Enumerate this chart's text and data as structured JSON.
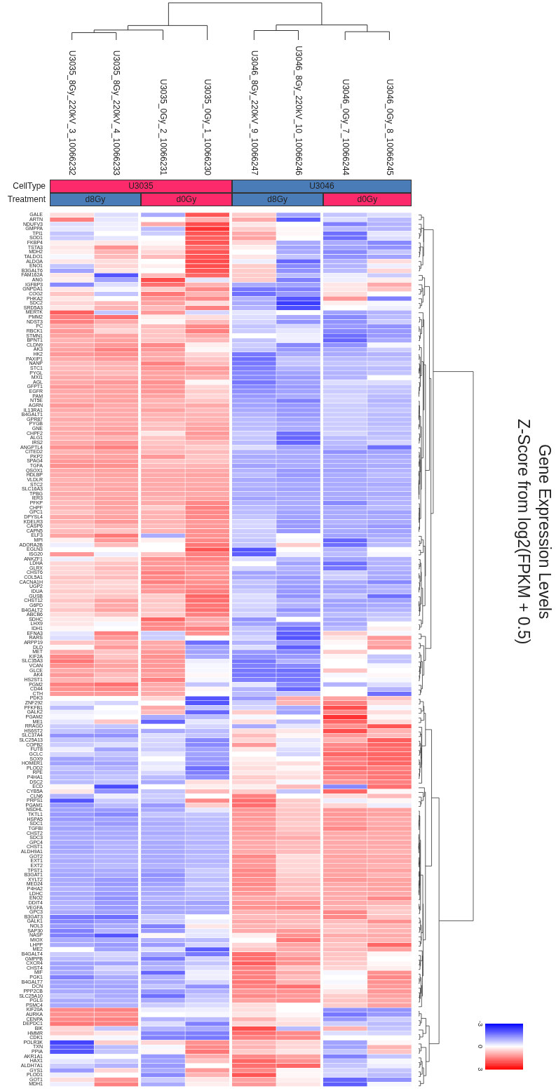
{
  "chart_data": {
    "type": "heatmap",
    "title": "Gene Expression Levels",
    "subtitle": "Z-Score from log2(FPKM + 0.5)",
    "categories": [
      "U3035_8Gy_220kV_3_10066232",
      "U3035_8Gy_220kV_4_10066233",
      "U3035_0Gy_2_10066231",
      "U3035_0Gy_1_10066230",
      "U3046_8Gy_220kV_9_10066247",
      "U3046_8Gy_220kV_10_10066246",
      "U3046_0Gy_7_10066244",
      "U3046_0Gy_8_10066245"
    ],
    "y_categories": [
      "GALE",
      "ARTN",
      "NDUFV3",
      "GMPPA",
      "TPI1",
      "SOD1",
      "FKBP4",
      "TSTA3",
      "MDH2",
      "TALDO1",
      "ALDOA",
      "ENO1",
      "B3GALT6",
      "FAM162A",
      "ANG",
      "IGFBP3",
      "GNPDA1",
      "COG2",
      "PHKA2",
      "SDC2",
      "SRD5A3",
      "MERTK",
      "PMM2",
      "NDST3",
      "PC",
      "RBCK1",
      "STMN1",
      "BPNT1",
      "CLDN9",
      "AK3",
      "HK2",
      "PAXIP1",
      "NANP",
      "STC1",
      "PYGL",
      "MXI1",
      "AGL",
      "GFPT1",
      "EGFR",
      "PAM",
      "NT5E",
      "AGRN",
      "IL13RA1",
      "B4GALT1",
      "GPR87",
      "PYGB",
      "GNE",
      "CHPF2",
      "ALG1",
      "IRS2",
      "ANGPTL4",
      "CITED2",
      "PKP2",
      "SPAG4",
      "TGFA",
      "QSOX1",
      "HDLBP",
      "VLDLR",
      "STC2",
      "SLC16A3",
      "TPBG",
      "IER3",
      "PFKP",
      "CHPF",
      "GPC1",
      "DPYSL4",
      "KDELR3",
      "CASP6",
      "CAPN5",
      "ELF3",
      "MPI",
      "ADORA2B",
      "EGLN3",
      "ISG20",
      "ANKZF1",
      "LDHA",
      "GLRX",
      "CHST6",
      "COL5A1",
      "CACNA1H",
      "UGP2",
      "IDUA",
      "GUSB",
      "CHST12",
      "G6PD",
      "B4GALT2",
      "ABCB6",
      "SDHC",
      "LHX9",
      "IDH1",
      "EFNA3",
      "RARS",
      "ARPP19",
      "DLD",
      "MET",
      "KIF2A",
      "SLC35A3",
      "VCAN",
      "GLCE",
      "AK4",
      "HS2ST1",
      "PGM2",
      "CD44",
      "CTH",
      "PDK3",
      "ZNF292",
      "PFKFB1",
      "GALK2",
      "PGAM2",
      "ME1",
      "RRAGD",
      "HS6ST2",
      "SLC37A4",
      "SLC25A13",
      "COPB2",
      "FUT8",
      "GCLC",
      "SOX9",
      "HOMER1",
      "PLOD2",
      "RPE",
      "P4HA1",
      "DSC2",
      "ECD",
      "CYB5A",
      "CLN6",
      "PRPS1",
      "PGAM1",
      "NSDHL",
      "TKTL1",
      "HSPA5",
      "SDC1",
      "TGFBI",
      "CHST2",
      "SDC3",
      "GPC4",
      "CHST1",
      "ALDH9A1",
      "GOT2",
      "EXT1",
      "EXT2",
      "TPST1",
      "B3GAT1",
      "XYLT2",
      "MED24",
      "P4HA2",
      "LDHC",
      "ENO2",
      "DDIT4",
      "VEGFA",
      "GPC3",
      "B3GAT3",
      "GALK1",
      "NOL3",
      "SAP30",
      "NASP",
      "MIOX",
      "LHPP",
      "ME2",
      "B4GALT4",
      "GMPPB",
      "CXCR4",
      "CHST4",
      "MIF",
      "PGK1",
      "B4GALT7",
      "DCN",
      "PPP2CB",
      "SLC25A10",
      "PGLS",
      "PSMC4",
      "KIF20A",
      "AURKA",
      "CENPA",
      "DEPDC1",
      "BIK",
      "HMMR",
      "CDK1",
      "POLR3K",
      "TXN",
      "PPIA",
      "AKR1A1",
      "HAX1",
      "ALDH7A1",
      "GYS1",
      "PLOD1",
      "GOT1",
      "MDH1"
    ],
    "cells": [
      [
        0.4,
        -0.4,
        -1.0,
        2.0,
        0.6,
        -1.1,
        -0.7,
        -0.4
      ],
      [
        1.5,
        -0.3,
        0,
        0.9,
        1.0,
        -1.9,
        -0.4,
        -0.8
      ],
      [
        -0.4,
        -0.2,
        1.0,
        2.1,
        0.3,
        0,
        -1.5,
        -0.9
      ],
      [
        -0.3,
        -0.2,
        -0.8,
        2.4,
        0.6,
        0.1,
        -0.8,
        -0.9
      ],
      [
        -0.7,
        0,
        -0.6,
        2.0,
        1.0,
        0.1,
        -1.7,
        -0.3
      ],
      [
        -0.6,
        -0.3,
        0,
        1.9,
        1.1,
        0,
        -1.7,
        -0.4
      ],
      [
        0.2,
        0.3,
        0.1,
        2.0,
        0.5,
        -1.0,
        -1.0,
        -1.4
      ],
      [
        0.3,
        1.3,
        0.3,
        1.7,
        0.2,
        -1.1,
        -1.1,
        -1.3
      ],
      [
        0.2,
        0.9,
        0.5,
        2.0,
        0,
        -1.0,
        -1.4,
        -0.7
      ],
      [
        -0.1,
        0.8,
        0.8,
        2.0,
        0.3,
        -0.7,
        -1.3,
        -1.1
      ],
      [
        0.3,
        0.4,
        0,
        2.1,
        -0.2,
        -1.8,
        -0.9,
        0.4
      ],
      [
        -0.7,
        0.5,
        0.2,
        2.1,
        0.6,
        -1.4,
        -0.9,
        -0.2
      ],
      [
        -1.1,
        0.3,
        0,
        2.0,
        0.6,
        -1.3,
        -0.8,
        0.5
      ],
      [
        0.3,
        -2.0,
        0.8,
        1.8,
        0.6,
        -0.8,
        -0.2,
        -0.6
      ],
      [
        0.2,
        -1.1,
        2.1,
        -0.3,
        0.6,
        -1.5,
        -0.2,
        0.2
      ],
      [
        -1.4,
        -0.4,
        1.7,
        0.9,
        -1.0,
        -1.1,
        0.3,
        1.0
      ],
      [
        0.3,
        -0.1,
        0.6,
        1.4,
        -1.6,
        -1.5,
        0.3,
        0.7
      ],
      [
        0.7,
        -0.7,
        1.6,
        0.9,
        -1.7,
        -1.2,
        0.4,
        0
      ],
      [
        0.3,
        0,
        1.2,
        1.4,
        -0.9,
        -2.0,
        1.2,
        -1.5
      ],
      [
        0.5,
        0.8,
        1.1,
        0.4,
        -1.0,
        -2.3,
        0.2,
        -0.1
      ],
      [
        0.3,
        0.9,
        0.8,
        1.5,
        -0.9,
        -2.1,
        0,
        -0.2
      ],
      [
        1.9,
        -0.7,
        1.2,
        -0.5,
        -0.3,
        0,
        -1.1,
        -0.9
      ],
      [
        1.5,
        1.7,
        0.2,
        0.4,
        -0.4,
        -1.0,
        -1.4,
        -0.8
      ],
      [
        1.5,
        1.0,
        0.1,
        0.8,
        -0.5,
        -1.3,
        -1.3,
        -0.6
      ],
      [
        1.0,
        0.7,
        0.8,
        1.4,
        -0.7,
        -0.5,
        -1.2,
        -1.3
      ],
      [
        1.2,
        0.5,
        0.7,
        1.5,
        -0.6,
        -0.3,
        -1.4,
        -1.2
      ],
      [
        1.1,
        1.1,
        0.7,
        1.0,
        0,
        -0.2,
        -1.7,
        -1.2
      ],
      [
        0.9,
        1.1,
        0.7,
        0.8,
        -0.7,
        -0.2,
        -1.8,
        -1.0
      ],
      [
        1.0,
        1.2,
        1.4,
        0.2,
        -0.6,
        -1.4,
        -1.3,
        -0.1
      ],
      [
        1.1,
        1.5,
        1.2,
        0.1,
        -0.7,
        -1.2,
        -1.0,
        -0.6
      ],
      [
        1.2,
        1.3,
        1.0,
        0.5,
        -1.6,
        -1.0,
        -1.0,
        -0.9
      ],
      [
        1.0,
        1.2,
        1.0,
        0.7,
        -1.7,
        -0.7,
        -0.8,
        -0.8
      ],
      [
        0.8,
        0.9,
        1.5,
        0.8,
        -1.6,
        -0.7,
        -0.7,
        -0.6
      ],
      [
        0.8,
        0.9,
        1.2,
        1.2,
        -1.5,
        -0.9,
        -0.8,
        -0.8
      ],
      [
        0.9,
        0.8,
        1.1,
        1.1,
        -1.4,
        -1.1,
        -0.9,
        -0.7
      ],
      [
        1.0,
        1.0,
        1.1,
        0.9,
        -1.4,
        -1.2,
        -0.9,
        0
      ],
      [
        1.0,
        1.2,
        1.3,
        0.1,
        -1.6,
        -1.1,
        -0.4,
        -0.4
      ],
      [
        1.2,
        1.1,
        1.2,
        0.5,
        -1.4,
        -1.2,
        -0.6,
        -0.7
      ],
      [
        1.0,
        1.1,
        1.2,
        0.6,
        -1.3,
        -1.1,
        -0.6,
        -0.7
      ],
      [
        1.0,
        1.1,
        1.1,
        0.5,
        -1.2,
        -1.0,
        -0.5,
        -0.8
      ],
      [
        1.0,
        1.1,
        0.9,
        0.7,
        -1.1,
        -1.5,
        -0.5,
        -0.9
      ],
      [
        1.2,
        1.0,
        0.9,
        1.0,
        -1.1,
        -1.2,
        -0.6,
        -0.8
      ],
      [
        1.0,
        1.0,
        1.1,
        0.8,
        -1.0,
        -1.2,
        -0.6,
        -0.7
      ],
      [
        0.9,
        1.0,
        0.9,
        0.9,
        -0.9,
        -1.2,
        -0.6,
        -0.8
      ],
      [
        1.0,
        1.0,
        0.9,
        0.9,
        -0.8,
        -1.1,
        -0.6,
        -0.8
      ],
      [
        0.9,
        1.0,
        0.7,
        1.0,
        -0.8,
        -1.0,
        -0.6,
        -0.8
      ],
      [
        1.0,
        1.1,
        0.8,
        1.1,
        -0.8,
        -1.0,
        -0.6,
        -0.7
      ],
      [
        1.0,
        1.2,
        0.3,
        1.2,
        -0.6,
        -1.7,
        -0.5,
        -0.8
      ],
      [
        0.9,
        0.9,
        0.7,
        1.1,
        -0.7,
        -1.8,
        -0.8,
        -0.7
      ],
      [
        1.0,
        1.2,
        0.7,
        0.8,
        -0.8,
        -1.8,
        -0.8,
        -0.5
      ],
      [
        1.3,
        1.5,
        0.8,
        0.6,
        -0.4,
        -1.1,
        -0.9,
        -1.7
      ],
      [
        0.9,
        1.1,
        0.8,
        0.8,
        -0.9,
        -1.0,
        -1.3,
        -1.1
      ],
      [
        1.1,
        1.1,
        1.2,
        0.7,
        -1.0,
        -1.0,
        -1.0,
        -1.0
      ],
      [
        1.2,
        1.2,
        0.7,
        0.7,
        -0.9,
        -1.0,
        -1.0,
        -0.9
      ],
      [
        1.3,
        1.3,
        0.8,
        0.9,
        -1.1,
        -1.0,
        -1.0,
        -1.0
      ],
      [
        1.0,
        1.1,
        1.0,
        1.0,
        -0.9,
        -1.2,
        -1.1,
        -0.9
      ],
      [
        1.0,
        1.1,
        1.0,
        1.1,
        -0.8,
        -1.2,
        -1.0,
        -0.8
      ],
      [
        0.9,
        1.0,
        1.0,
        1.0,
        -1.0,
        -1.1,
        -1.0,
        -0.9
      ],
      [
        1.0,
        1.0,
        1.0,
        1.0,
        -0.9,
        -1.0,
        -1.0,
        -1.0
      ],
      [
        0.9,
        1.1,
        1.0,
        1.1,
        -1.0,
        -1.1,
        -1.0,
        -0.9
      ],
      [
        1.0,
        1.0,
        1.0,
        1.0,
        -0.9,
        -1.0,
        -1.0,
        -1.0
      ],
      [
        0.9,
        1.1,
        0.9,
        1.1,
        -1.1,
        -1.0,
        -1.0,
        -0.9
      ],
      [
        0.8,
        1.1,
        1.0,
        1.4,
        -0.9,
        -1.0,
        -1.4,
        -0.9
      ],
      [
        0.9,
        1.1,
        0.6,
        1.5,
        -0.8,
        -1.0,
        -1.0,
        -0.8
      ],
      [
        0.7,
        1.0,
        0.9,
        1.4,
        -0.8,
        -1.1,
        -1.0,
        -1.1
      ],
      [
        1.0,
        1.1,
        0.9,
        1.4,
        -0.7,
        -1.1,
        -1.0,
        -1.0
      ],
      [
        0.9,
        1.2,
        0.9,
        1.2,
        -0.5,
        -1.2,
        -0.9,
        -1.0
      ],
      [
        0.7,
        0.9,
        0.8,
        1.2,
        -0.5,
        -1.2,
        -1.0,
        -1.2
      ],
      [
        0.8,
        0.7,
        0.9,
        1.3,
        -0.6,
        -1.2,
        -1.0,
        -1.1
      ],
      [
        1.1,
        1.6,
        -1.0,
        1.3,
        -0.6,
        0,
        -1.1,
        -1.0
      ],
      [
        0.2,
        1.2,
        0.2,
        1.4,
        -0.7,
        -0.1,
        -1.8,
        -0.9
      ],
      [
        -0.2,
        0.8,
        0,
        1.6,
        -0.7,
        0.6,
        -1.7,
        -0.8
      ],
      [
        0,
        0,
        0,
        2.0,
        -2.0,
        0,
        -0.9,
        0
      ],
      [
        1.2,
        -0.2,
        0.7,
        1.5,
        -1.9,
        -0.2,
        -0.8,
        -0.1
      ],
      [
        -0.2,
        0.4,
        1.3,
        1.5,
        -0.4,
        -0.8,
        -1.1,
        -0.9
      ],
      [
        0.5,
        0.7,
        1.2,
        1.3,
        0,
        -1.1,
        -1.7,
        -0.9
      ],
      [
        0.5,
        0.8,
        1.2,
        1.2,
        -0.5,
        -0.9,
        -1.6,
        -0.9
      ],
      [
        0.5,
        0.7,
        1.5,
        1.2,
        -1.1,
        -1.0,
        -0.6,
        -1.0
      ],
      [
        0.7,
        0.8,
        1.4,
        1.3,
        -1.0,
        -1.2,
        -0.6,
        -1.0
      ],
      [
        0.6,
        0.5,
        1.5,
        1.3,
        -0.7,
        -1.1,
        -1.0,
        -1.4
      ],
      [
        0.5,
        0.5,
        1.2,
        1.4,
        -0.8,
        -1.2,
        -1.1,
        -0.9
      ],
      [
        0.6,
        0.6,
        1.2,
        1.5,
        -0.6,
        -1.2,
        -1.0,
        -0.9
      ],
      [
        0.5,
        0.7,
        0.6,
        1.8,
        -0.4,
        -1.3,
        -0.7,
        -1.7
      ],
      [
        0.7,
        1.1,
        0.7,
        1.7,
        -0.5,
        -0.9,
        -1.1,
        -1.1
      ],
      [
        0.5,
        1.0,
        0.6,
        1.6,
        -0.5,
        -0.9,
        -1.1,
        -1.0
      ],
      [
        0.7,
        1.1,
        0.7,
        1.7,
        -0.6,
        -1.3,
        -1.0,
        -0.9
      ],
      [
        0.4,
        0.7,
        0.6,
        1.5,
        -0.5,
        -1.0,
        -0.8,
        -0.7
      ],
      [
        0.3,
        0.2,
        1.8,
        1.0,
        -1.3,
        0,
        -1.0,
        -0.6
      ],
      [
        0.3,
        -0.1,
        1.4,
        1.0,
        -1.1,
        -1.3,
        -1.0,
        0
      ],
      [
        0.1,
        0,
        1.4,
        1.5,
        -0.7,
        -1.7,
        -0.8,
        0.2
      ],
      [
        -0.3,
        1.5,
        -0.6,
        1.3,
        -0.7,
        -1.9,
        0.6,
        -0.1
      ],
      [
        -0.4,
        1.2,
        -0.6,
        0,
        -0.5,
        -2.0,
        0.3,
        1.2
      ],
      [
        0.7,
        0.9,
        1.0,
        -1.7,
        -0.9,
        -1.2,
        0.1,
        1.0
      ],
      [
        0.1,
        1.2,
        1.0,
        -1.1,
        -0.4,
        -1.9,
        0,
        1.2
      ],
      [
        1.0,
        0.7,
        1.2,
        -1.1,
        -1.2,
        -1.4,
        0.6,
        0
      ],
      [
        1.4,
        0.7,
        1.3,
        -1.0,
        -1.3,
        -1.2,
        0.1,
        -0.7
      ],
      [
        1.6,
        1.0,
        1.2,
        -0.2,
        -1.6,
        -0.9,
        0,
        -0.7
      ],
      [
        1.3,
        1.1,
        1.2,
        -0.1,
        -1.5,
        -1.4,
        0,
        -0.1
      ],
      [
        1.0,
        1.0,
        1.2,
        -0.1,
        -1.6,
        -1.7,
        0.7,
        0
      ],
      [
        1.2,
        0.8,
        1.1,
        0.1,
        -1.6,
        -1.6,
        -0.1,
        0.1
      ],
      [
        0.9,
        0.7,
        1.5,
        -0.1,
        -1.5,
        -1.6,
        0,
        -0.1
      ],
      [
        1.5,
        1.7,
        1.0,
        -0.7,
        -0.3,
        -1.4,
        -0.9,
        -0.4
      ],
      [
        1.3,
        1.4,
        1.0,
        0.1,
        -0.9,
        -1.8,
        0,
        -0.9
      ],
      [
        1.2,
        1.2,
        1.0,
        0,
        -0.8,
        -0.7,
        0,
        -1.7
      ],
      [
        0,
        0,
        0.5,
        -2.0,
        -1.2,
        1.0,
        1.1,
        0.7
      ],
      [
        -0.3,
        -0.5,
        0,
        -2.0,
        -0.6,
        0.9,
        1.5,
        0.4
      ],
      [
        -0.8,
        0,
        1.0,
        -0.7,
        -0.5,
        -1.0,
        2.1,
        -0.1
      ],
      [
        -0.2,
        -0.1,
        0.8,
        -1.8,
        0.6,
        -1.1,
        1.4,
        0.4
      ],
      [
        -0.1,
        0,
        -1.0,
        -0.8,
        -0.1,
        0,
        2.4,
        0.1
      ],
      [
        -0.3,
        0.7,
        -1.8,
        -0.3,
        0.4,
        -0.8,
        1.8,
        0.4
      ],
      [
        -0.6,
        -0.7,
        0,
        -0.5,
        -1.0,
        -0.3,
        1.3,
        2.0
      ],
      [
        -0.7,
        -1.0,
        -1.0,
        -0.8,
        0.4,
        0.3,
        2.1,
        0.9
      ],
      [
        -1.3,
        -1.3,
        -0.4,
        -0.7,
        0.8,
        0.1,
        1.2,
        0.8
      ],
      [
        -0.7,
        -0.7,
        -0.5,
        -1.4,
        0.5,
        -0.3,
        0.9,
        1.9
      ],
      [
        -0.6,
        -0.4,
        -0.5,
        -1.4,
        1.2,
        -0.2,
        1.4,
        1.8
      ],
      [
        -0.2,
        -1.1,
        -0.6,
        -1.1,
        0.3,
        -0.4,
        1.5,
        1.7
      ],
      [
        -0.5,
        -0.7,
        -0.3,
        -1.1,
        0,
        -0.5,
        1.8,
        1.8
      ],
      [
        -1.1,
        -0.9,
        0,
        -1.2,
        0.2,
        0,
        1.5,
        1.8
      ],
      [
        -1.1,
        -1.1,
        -0.3,
        -1.2,
        0.3,
        0.4,
        1.5,
        1.8
      ],
      [
        -0.7,
        -0.9,
        -0.2,
        -1.7,
        0.4,
        0.1,
        1.7,
        1.5
      ],
      [
        -0.9,
        -0.8,
        -0.5,
        -1.5,
        0.3,
        0.3,
        1.5,
        1.6
      ],
      [
        -0.8,
        -0.7,
        -0.8,
        -1.3,
        0.6,
        0.4,
        1.4,
        1.6
      ],
      [
        -0.8,
        -0.7,
        -1.0,
        0.4,
        0.5,
        -0.1,
        1.2,
        1.5
      ],
      [
        0.1,
        -2.1,
        0,
        0.2,
        0.2,
        0.8,
        -1.4,
        1.7
      ],
      [
        0.3,
        -1.3,
        -0.7,
        0.8,
        0.6,
        -0.7,
        1.8,
        0.1
      ],
      [
        -0.9,
        -0.2,
        -0.6,
        0,
        1.5,
        0,
        0.4,
        0.8
      ],
      [
        -2.0,
        -0.6,
        -0.7,
        1.4,
        1.7,
        0.6,
        -0.2,
        0.1
      ],
      [
        -1.2,
        -0.8,
        -1.2,
        0.6,
        1.7,
        0.6,
        0.5,
        -0.2
      ],
      [
        -1.1,
        -1.2,
        -1.0,
        -0.3,
        1.2,
        0.7,
        1.2,
        1.1
      ],
      [
        -1.2,
        -1.4,
        -0.7,
        -0.7,
        1.2,
        0.7,
        1.2,
        1.1
      ],
      [
        -1.2,
        -1.1,
        -0.9,
        -0.8,
        1.2,
        0.7,
        1.2,
        1.0
      ],
      [
        -1.0,
        -1.2,
        -1.0,
        -0.8,
        1.1,
        0.6,
        1.2,
        1.0
      ],
      [
        -1.1,
        -1.0,
        -0.9,
        -0.8,
        1.2,
        0.7,
        1.4,
        1.1
      ],
      [
        -1.0,
        -1.0,
        -1.0,
        -0.9,
        1.1,
        0.8,
        1.0,
        1.0
      ],
      [
        -1.0,
        -1.0,
        -0.9,
        -0.8,
        1.1,
        1.0,
        1.0,
        1.0
      ],
      [
        -1.0,
        -0.9,
        -1.0,
        -0.9,
        1.0,
        0.8,
        1.0,
        1.0
      ],
      [
        -1.1,
        -0.9,
        -1.0,
        -0.8,
        1.0,
        0.8,
        1.0,
        1.0
      ],
      [
        -1.0,
        -0.9,
        -1.0,
        -0.9,
        1.0,
        0.8,
        1.0,
        0.9
      ],
      [
        -0.9,
        -0.9,
        -1.0,
        -0.8,
        1.4,
        0.4,
        1.1,
        1.0
      ],
      [
        -1.0,
        -0.9,
        -1.0,
        -0.9,
        1.2,
        0.5,
        1.0,
        1.0
      ],
      [
        -0.9,
        -0.8,
        -0.9,
        -0.8,
        1.2,
        0.5,
        1.0,
        0.9
      ],
      [
        -1.0,
        -1.0,
        -1.1,
        -0.6,
        1.4,
        0.5,
        1.1,
        1.1
      ],
      [
        -1.1,
        -1.0,
        -1.3,
        -0.7,
        1.4,
        0.6,
        1.1,
        0.9
      ],
      [
        -1.0,
        -1.2,
        -1.2,
        -0.8,
        1.3,
        0.7,
        1.2,
        1.1
      ],
      [
        -1.0,
        -1.2,
        -1.1,
        -0.6,
        1.4,
        0.8,
        1.0,
        1.1
      ],
      [
        -0.9,
        -1.1,
        -1.0,
        -0.8,
        1.3,
        0.7,
        1.0,
        1.1
      ],
      [
        -1.0,
        -1.2,
        -1.0,
        -0.8,
        1.2,
        0.8,
        1.0,
        1.0
      ],
      [
        -1.0,
        -1.3,
        -0.9,
        -0.8,
        1.0,
        1.0,
        1.0,
        1.4
      ],
      [
        -0.9,
        -1.2,
        -1.0,
        -1.1,
        1.2,
        1.2,
        1.0,
        0.9
      ],
      [
        -0.9,
        -1.2,
        -1.1,
        -1.0,
        1.3,
        1.4,
        0.9,
        0.7
      ],
      [
        -1.0,
        -1.1,
        -1.0,
        -1.0,
        0.9,
        0.9,
        1.4,
        0.6
      ],
      [
        -1.6,
        -1.7,
        -0.6,
        0,
        0.8,
        0.9,
        1.4,
        0.7
      ],
      [
        -1.4,
        -1.2,
        -0.6,
        -0.2,
        1.0,
        0.8,
        0.8,
        1.3
      ],
      [
        -1.2,
        -1.0,
        -1.5,
        0.3,
        0.9,
        0.8,
        0.7,
        0.9
      ],
      [
        -1.5,
        -0.9,
        -1.2,
        -0.3,
        1.0,
        1.2,
        0.7,
        0.9
      ],
      [
        -1.5,
        -2.0,
        0.1,
        -0.3,
        0.2,
        1.3,
        1.0,
        1.0
      ],
      [
        -1.0,
        -1.0,
        -0.9,
        -0.8,
        0,
        1.6,
        0.8,
        0.9
      ],
      [
        -1.0,
        -1.2,
        -1.2,
        -0.5,
        0.5,
        1.1,
        0.7,
        1.8
      ],
      [
        0,
        -1.1,
        -0.4,
        -1.9,
        0.7,
        1.0,
        0.8,
        1.1
      ],
      [
        -0.6,
        -0.5,
        -1.0,
        -1.6,
        1.7,
        1.0,
        0.7,
        0.1
      ],
      [
        -0.8,
        -0.6,
        -1.6,
        -0.5,
        1.7,
        1.3,
        0.7,
        0
      ],
      [
        -1.1,
        -1.1,
        -1.0,
        -0.7,
        1.9,
        1.3,
        0.6,
        0.1
      ],
      [
        -1.1,
        -0.5,
        -0.9,
        -0.4,
        1.5,
        0.7,
        0.5,
        0.2
      ],
      [
        -1.0,
        -0.7,
        -1.8,
        -0.2,
        1.5,
        1.0,
        -0.1,
        1.3
      ],
      [
        -1.5,
        -1.0,
        -0.9,
        -0.2,
        1.5,
        0.8,
        0,
        1.4
      ],
      [
        -1.1,
        -1.0,
        -1.0,
        -0.5,
        1.6,
        0.9,
        -0.1,
        1.3
      ],
      [
        -1.1,
        -1.1,
        -0.7,
        -1.3,
        1.5,
        1.7,
        0.1,
        1.2
      ],
      [
        -1.0,
        -1.0,
        -1.2,
        -0.9,
        1.2,
        1.3,
        0.3,
        1.2
      ],
      [
        -0.7,
        -1.0,
        -1.7,
        -0.7,
        1.4,
        1.2,
        0.6,
        1.1
      ],
      [
        -1.0,
        -0.9,
        -1.0,
        -0.6,
        1.1,
        1.3,
        0.7,
        1.0
      ],
      [
        -1.0,
        -0.9,
        -0.6,
        -0.4,
        0.4,
        0,
        0.6,
        1.1
      ],
      [
        1.4,
        1.5,
        -0.2,
        -0.2,
        0.4,
        0,
        -1.3,
        -1.3
      ],
      [
        1.3,
        1.3,
        0,
        -0.1,
        0.3,
        0.1,
        -1.6,
        -1.2
      ],
      [
        1.4,
        1.5,
        -0.9,
        -0.8,
        0.9,
        0.3,
        -1.2,
        -0.6
      ],
      [
        1.6,
        1.5,
        -0.4,
        -1.5,
        0.5,
        0.4,
        -0.6,
        -0.8
      ],
      [
        0.5,
        -0.7,
        -0.9,
        -1.0,
        2.1,
        -0.8,
        0.9,
        -0.7
      ],
      [
        0.6,
        0.3,
        -1.4,
        -1.5,
        1.7,
        1.4,
        -0.4,
        -0.5
      ],
      [
        0.1,
        -0.1,
        -1.5,
        -1.6,
        1.5,
        1.4,
        0,
        0
      ],
      [
        -2.2,
        0.6,
        0.5,
        1.3,
        0.8,
        0.5,
        -1.1,
        0.1
      ],
      [
        -1.9,
        -0.8,
        -0.1,
        1.4,
        0.9,
        0.5,
        -1.1,
        0.9
      ],
      [
        -2.0,
        -0.7,
        0.1,
        1.6,
        0.6,
        0.3,
        -0.7,
        0.7
      ],
      [
        -0.1,
        0,
        -1.2,
        1.0,
        1.4,
        1.1,
        -1.5,
        -0.7
      ],
      [
        -0.3,
        -0.6,
        -1.1,
        0.7,
        1.8,
        1.3,
        -0.8,
        -0.1
      ],
      [
        -0.6,
        -0.9,
        -1.2,
        0,
        1.7,
        1.8,
        -0.7,
        -0.2
      ],
      [
        -1.2,
        0.5,
        -1.0,
        1.2,
        1.4,
        0.1,
        -0.5,
        -0.7
      ],
      [
        -0.2,
        0,
        -1.4,
        0.9,
        2.0,
        0.1,
        -0.5,
        -0.8
      ],
      [
        0.4,
        1.2,
        -0.6,
        0.3,
        1.1,
        0.2,
        -1.8,
        -1.3
      ],
      [
        -0.2,
        1.5,
        -1.0,
        0.2,
        1.2,
        0.3,
        -1.9,
        -0.1
      ]
    ],
    "clim": [
      -3,
      3
    ],
    "cticks": [
      -3,
      0,
      3
    ],
    "annotations": [
      "CellType",
      "Treatment",
      "U3035",
      "U3046",
      "d8Gy",
      "d0Gy",
      "d8Gy",
      "d0Gy"
    ]
  }
}
